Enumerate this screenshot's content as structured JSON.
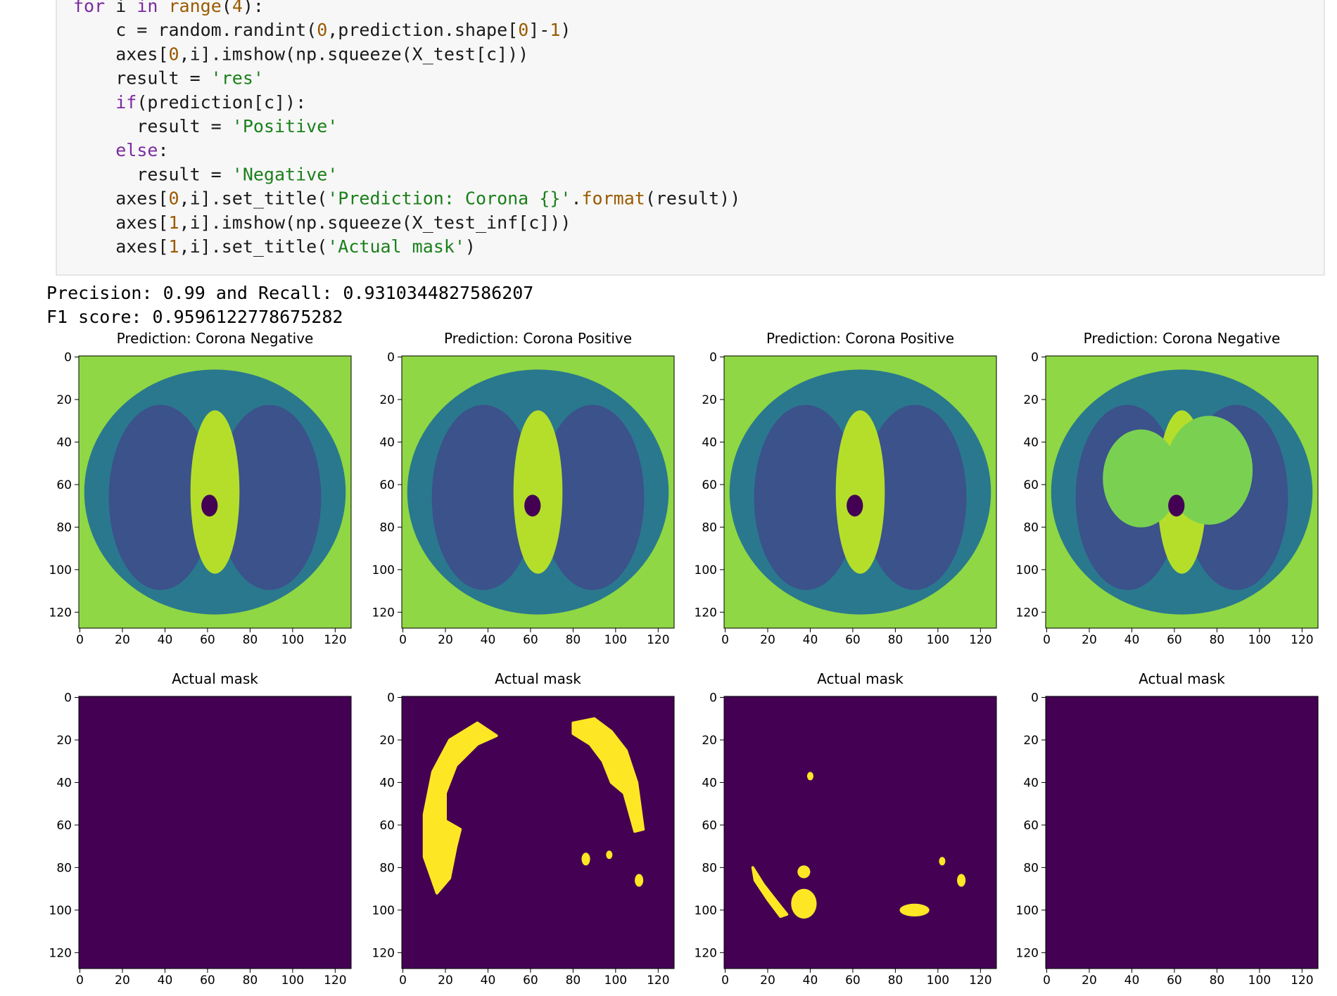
{
  "code": {
    "lines": [
      [
        {
          "text": "for",
          "color": "#7b2ba0"
        },
        {
          "text": " i ",
          "color": "#1a1a1a"
        },
        {
          "text": "in",
          "color": "#7b2ba0"
        },
        {
          "text": " ",
          "color": "#1a1a1a"
        },
        {
          "text": "range",
          "color": "#9a5a00"
        },
        {
          "text": "(",
          "color": "#1a1a1a"
        },
        {
          "text": "4",
          "color": "#9a5a00"
        },
        {
          "text": "):",
          "color": "#1a1a1a"
        }
      ],
      [
        {
          "text": "    c = random.randint(",
          "color": "#1a1a1a"
        },
        {
          "text": "0",
          "color": "#9a5a00"
        },
        {
          "text": ",prediction.shape[",
          "color": "#1a1a1a"
        },
        {
          "text": "0",
          "color": "#9a5a00"
        },
        {
          "text": "]-",
          "color": "#1a1a1a"
        },
        {
          "text": "1",
          "color": "#9a5a00"
        },
        {
          "text": ")",
          "color": "#1a1a1a"
        }
      ],
      [
        {
          "text": "    axes[",
          "color": "#1a1a1a"
        },
        {
          "text": "0",
          "color": "#9a5a00"
        },
        {
          "text": ",i].imshow(np.squeeze(X_test[c]))",
          "color": "#1a1a1a"
        }
      ],
      [
        {
          "text": "    result = ",
          "color": "#1a1a1a"
        },
        {
          "text": "'res'",
          "color": "#1a7f1a"
        }
      ],
      [
        {
          "text": "    ",
          "color": "#1a1a1a"
        },
        {
          "text": "if",
          "color": "#7b2ba0"
        },
        {
          "text": "(prediction[c]):",
          "color": "#1a1a1a"
        }
      ],
      [
        {
          "text": "      result = ",
          "color": "#1a1a1a"
        },
        {
          "text": "'Positive'",
          "color": "#1a7f1a"
        }
      ],
      [
        {
          "text": "    ",
          "color": "#1a1a1a"
        },
        {
          "text": "else",
          "color": "#7b2ba0"
        },
        {
          "text": ":",
          "color": "#1a1a1a"
        }
      ],
      [
        {
          "text": "      result = ",
          "color": "#1a1a1a"
        },
        {
          "text": "'Negative'",
          "color": "#1a7f1a"
        }
      ],
      [
        {
          "text": "    axes[",
          "color": "#1a1a1a"
        },
        {
          "text": "0",
          "color": "#9a5a00"
        },
        {
          "text": ",i].set_title(",
          "color": "#1a1a1a"
        },
        {
          "text": "'Prediction: Corona {}'",
          "color": "#1a7f1a"
        },
        {
          "text": ".",
          "color": "#1a1a1a"
        },
        {
          "text": "format",
          "color": "#9a5a00"
        },
        {
          "text": "(result))",
          "color": "#1a1a1a"
        }
      ],
      [
        {
          "text": "    axes[",
          "color": "#1a1a1a"
        },
        {
          "text": "1",
          "color": "#9a5a00"
        },
        {
          "text": ",i].imshow(np.squeeze(X_test_inf[c]))",
          "color": "#1a1a1a"
        }
      ],
      [
        {
          "text": "    axes[",
          "color": "#1a1a1a"
        },
        {
          "text": "1",
          "color": "#9a5a00"
        },
        {
          "text": ",i].set_title(",
          "color": "#1a1a1a"
        },
        {
          "text": "'Actual mask'",
          "color": "#1a7f1a"
        },
        {
          "text": ")",
          "color": "#1a1a1a"
        }
      ]
    ]
  },
  "output": {
    "lines": [
      "Precision: 0.99 and Recall: 0.9310344827586207",
      "F1 score: 0.9596122778675282"
    ]
  },
  "figure": {
    "xlim": [
      -0.5,
      127.5
    ],
    "ylim": [
      127.5,
      -0.5
    ],
    "xticks": [
      0,
      20,
      40,
      60,
      80,
      100,
      120
    ],
    "yticks": [
      0,
      20,
      40,
      60,
      80,
      100,
      120
    ],
    "panels": [
      {
        "title": "Prediction: Corona Negative"
      },
      {
        "title": "Prediction: Corona Positive"
      },
      {
        "title": "Prediction: Corona Positive"
      },
      {
        "title": "Prediction: Corona Negative"
      },
      {
        "title": "Actual mask"
      },
      {
        "title": "Actual mask"
      },
      {
        "title": "Actual mask"
      },
      {
        "title": "Actual mask"
      }
    ]
  }
}
